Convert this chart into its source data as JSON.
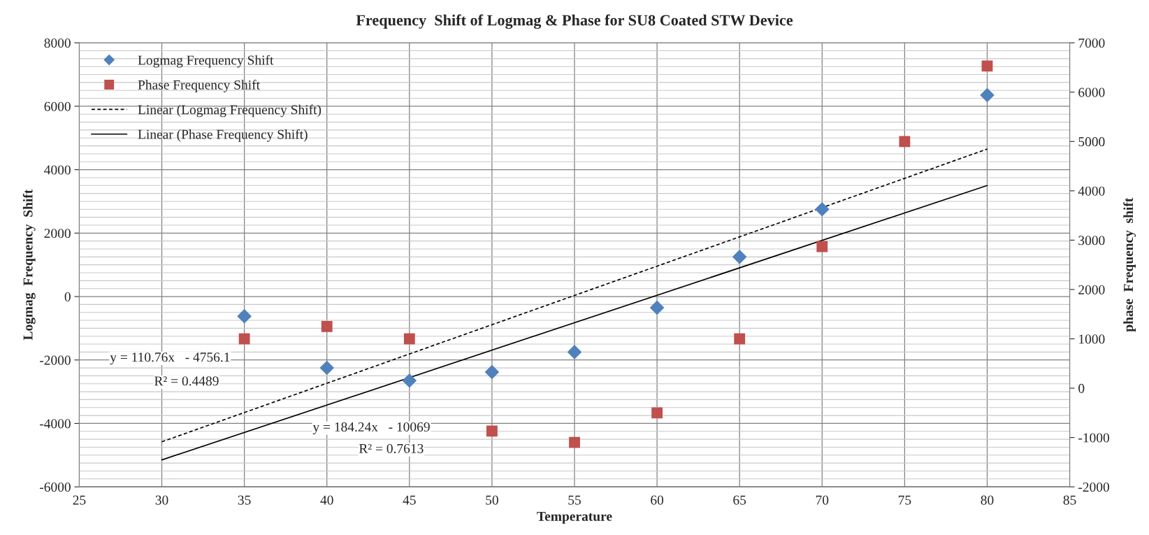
{
  "chart_data": {
    "type": "scatter",
    "title": "Frequency  Shift of Logmag & Phase for SU8 Coated STW Device",
    "xlabel": "Temperature",
    "ylabel": "Logmag  Frequency  Shift",
    "y2label": "phase  Frequency  shift",
    "series": [
      {
        "name": "Logmag Frequency Shift",
        "marker": "diamond",
        "color": "#4f81bd",
        "x": [
          35,
          40,
          45,
          50,
          55,
          60,
          65,
          70,
          80
        ],
        "values": [
          -620,
          -2250,
          -2650,
          -2380,
          -1750,
          -350,
          1250,
          2750,
          6350
        ]
      },
      {
        "name": "Phase Frequency Shift",
        "marker": "square",
        "color": "#c0504d",
        "axis": "y2",
        "x": [
          35,
          40,
          45,
          50,
          55,
          60,
          65,
          70,
          75,
          80
        ],
        "values": [
          1000,
          1250,
          1000,
          -870,
          -1100,
          -500,
          1000,
          2870,
          5000,
          6530
        ]
      },
      {
        "name": "Linear (Logmag Frequency Shift)",
        "type": "line",
        "marker": "none",
        "line_style": "dashed",
        "color": "#000000",
        "x": [
          30,
          80
        ],
        "values": [
          -4580,
          4650
        ]
      },
      {
        "name": "Linear (Phase Frequency Shift)",
        "type": "line",
        "marker": "none",
        "line_style": "solid",
        "color": "#000000",
        "x": [
          30,
          80
        ],
        "values": [
          -5150,
          3500
        ]
      }
    ],
    "xlim": [
      25,
      85
    ],
    "xticks": [
      25,
      30,
      35,
      40,
      45,
      50,
      55,
      60,
      65,
      70,
      75,
      80,
      85
    ],
    "ylim": [
      -6000,
      8000
    ],
    "yticks": [
      -6000,
      -4000,
      -2000,
      0,
      2000,
      4000,
      6000,
      8000
    ],
    "y2lim": [
      -2000,
      7000
    ],
    "y2ticks": [
      -2000,
      -1000,
      0,
      1000,
      2000,
      3000,
      4000,
      5000,
      6000,
      7000
    ],
    "annotations": [
      "y = 110.76x   - 4756.1",
      "R² = 0.4489",
      "y = 184.24x   - 10069",
      "R² = 0.7613"
    ],
    "grid": true,
    "legend": "top left"
  }
}
